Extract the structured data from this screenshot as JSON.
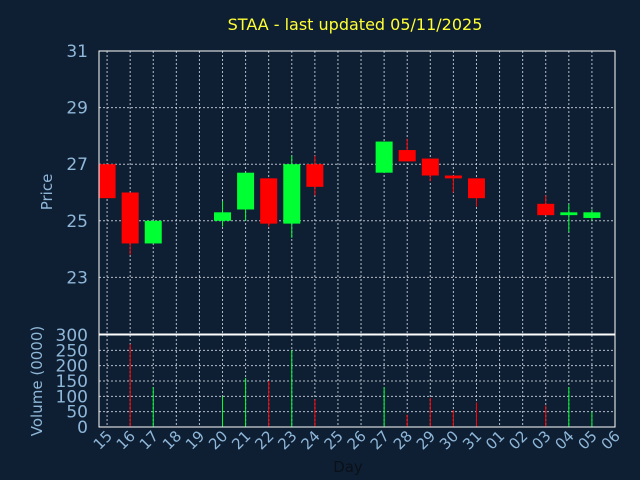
{
  "title": "STAA - last updated 05/11/2025",
  "colors": {
    "background": "#0f1f33",
    "up": "#00ff33",
    "down": "#ff0000",
    "title": "#ffff33",
    "axis_text": "#8fb7d9",
    "grid": "#cfd8e3"
  },
  "chart_data": [
    {
      "type": "candlestick",
      "ylabel": "Price",
      "ylim": [
        21,
        31
      ],
      "yticks": [
        23,
        25,
        27,
        29,
        31
      ],
      "grid": true,
      "x": [
        "15",
        "16",
        "17",
        "18",
        "19",
        "20",
        "21",
        "22",
        "23",
        "24",
        "25",
        "26",
        "27",
        "28",
        "29",
        "30",
        "31",
        "01",
        "02",
        "03",
        "04",
        "05",
        "06"
      ],
      "x_start_offset": -0.35,
      "candles": [
        {
          "day": "15",
          "open": 27.0,
          "high": 27.0,
          "low": 25.8,
          "close": 25.8
        },
        {
          "day": "16",
          "open": 26.0,
          "high": 26.0,
          "low": 23.8,
          "close": 24.2
        },
        {
          "day": "17",
          "open": 24.2,
          "high": 25.0,
          "low": 24.2,
          "close": 25.0
        },
        {
          "day": "20",
          "open": 25.0,
          "high": 25.7,
          "low": 24.8,
          "close": 25.3
        },
        {
          "day": "21",
          "open": 25.4,
          "high": 26.7,
          "low": 25.0,
          "close": 26.7
        },
        {
          "day": "22",
          "open": 26.5,
          "high": 26.5,
          "low": 24.8,
          "close": 24.9
        },
        {
          "day": "23",
          "open": 24.9,
          "high": 27.3,
          "low": 24.4,
          "close": 27.0
        },
        {
          "day": "24",
          "open": 27.0,
          "high": 27.3,
          "low": 25.9,
          "close": 26.2
        },
        {
          "day": "27",
          "open": 26.7,
          "high": 27.8,
          "low": 26.7,
          "close": 27.8
        },
        {
          "day": "28",
          "open": 27.5,
          "high": 27.9,
          "low": 27.1,
          "close": 27.1
        },
        {
          "day": "29",
          "open": 27.2,
          "high": 27.2,
          "low": 26.4,
          "close": 26.6
        },
        {
          "day": "30",
          "open": 26.6,
          "high": 26.6,
          "low": 26.0,
          "close": 26.5
        },
        {
          "day": "31",
          "open": 26.5,
          "high": 26.5,
          "low": 25.5,
          "close": 25.8
        },
        {
          "day": "03",
          "open": 25.6,
          "high": 25.9,
          "low": 25.2,
          "close": 25.2
        },
        {
          "day": "04",
          "open": 25.2,
          "high": 25.6,
          "low": 24.6,
          "close": 25.3
        },
        {
          "day": "05",
          "open": 25.1,
          "high": 25.4,
          "low": 25.0,
          "close": 25.3
        }
      ]
    },
    {
      "type": "bar",
      "ylabel": "Volume (0000)",
      "xlabel": "Day",
      "ylim": [
        0,
        300
      ],
      "yticks": [
        0,
        50,
        100,
        150,
        200,
        250,
        300
      ],
      "grid": true,
      "bars": [
        {
          "day": "16",
          "value": 270,
          "dir": "down"
        },
        {
          "day": "17",
          "value": 130,
          "dir": "up"
        },
        {
          "day": "20",
          "value": 100,
          "dir": "up"
        },
        {
          "day": "21",
          "value": 160,
          "dir": "up"
        },
        {
          "day": "22",
          "value": 150,
          "dir": "down"
        },
        {
          "day": "23",
          "value": 250,
          "dir": "up"
        },
        {
          "day": "24",
          "value": 90,
          "dir": "down"
        },
        {
          "day": "27",
          "value": 130,
          "dir": "up"
        },
        {
          "day": "28",
          "value": 40,
          "dir": "down"
        },
        {
          "day": "29",
          "value": 95,
          "dir": "down"
        },
        {
          "day": "30",
          "value": 55,
          "dir": "down"
        },
        {
          "day": "31",
          "value": 80,
          "dir": "down"
        },
        {
          "day": "03",
          "value": 70,
          "dir": "down"
        },
        {
          "day": "04",
          "value": 130,
          "dir": "up"
        },
        {
          "day": "05",
          "value": 50,
          "dir": "up"
        }
      ]
    }
  ]
}
